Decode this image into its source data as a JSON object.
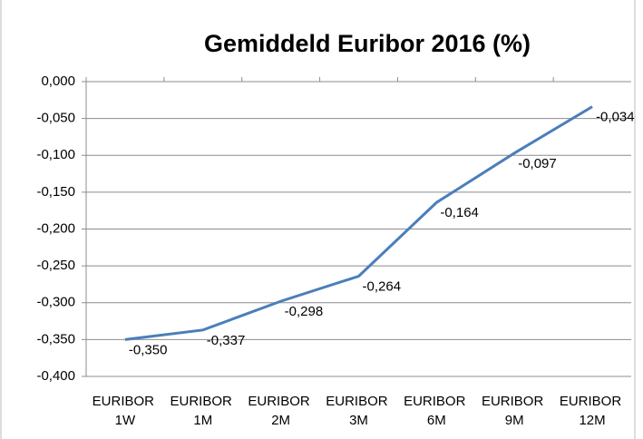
{
  "chart_data": {
    "type": "line",
    "title": "Gemiddeld Euribor 2016 (%)",
    "categories": [
      "EURIBOR 1W",
      "EURIBOR 1M",
      "EURIBOR 2M",
      "EURIBOR 3M",
      "EURIBOR 6M",
      "EURIBOR 9M",
      "EURIBOR 12M"
    ],
    "series": [
      {
        "name": "Gemiddeld Euribor 2016",
        "color": "#4a7ebb",
        "values": [
          -0.35,
          -0.337,
          -0.298,
          -0.264,
          -0.164,
          -0.097,
          -0.034
        ],
        "value_labels": [
          "-0,350",
          "-0,337",
          "-0,298",
          "-0,264",
          "-0,164",
          "-0,097",
          "-0,034"
        ]
      }
    ],
    "ylim": [
      -0.4,
      0
    ],
    "yticks": [
      {
        "value": 0,
        "label": "0,000"
      },
      {
        "value": -0.05,
        "label": "-0,050"
      },
      {
        "value": -0.1,
        "label": "-0,100"
      },
      {
        "value": -0.15,
        "label": "-0,150"
      },
      {
        "value": -0.2,
        "label": "-0,200"
      },
      {
        "value": -0.25,
        "label": "-0,250"
      },
      {
        "value": -0.3,
        "label": "-0,300"
      },
      {
        "value": -0.35,
        "label": "-0,350"
      },
      {
        "value": -0.4,
        "label": "-0,400"
      }
    ],
    "grid": true
  }
}
